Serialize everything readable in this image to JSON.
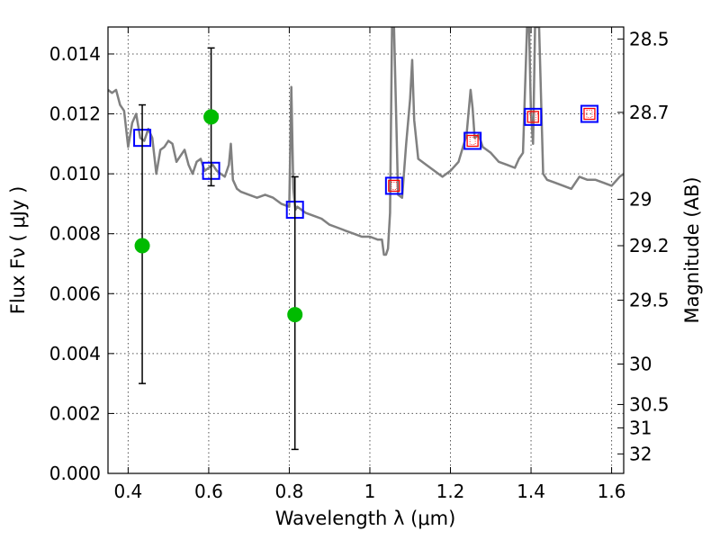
{
  "chart_data": {
    "type": "line",
    "xlabel": "Wavelength  λ (μm)",
    "ylabel": "Flux  Fν  ( μJy )",
    "ylabel_right": "Magnitude (AB)",
    "xlim": [
      0.35,
      1.63
    ],
    "ylim": [
      0.0,
      0.0149
    ],
    "grid": true,
    "x_ticks": [
      0.4,
      0.6,
      0.8,
      1.0,
      1.2,
      1.4,
      1.6
    ],
    "x_tick_labels": [
      "0.4",
      "0.6",
      "0.8",
      "1",
      "1.2",
      "1.4",
      "1.6"
    ],
    "y_ticks": [
      0.0,
      0.002,
      0.004,
      0.006,
      0.008,
      0.01,
      0.012,
      0.014
    ],
    "y_tick_labels": [
      "0.000",
      "0.002",
      "0.004",
      "0.006",
      "0.008",
      "0.010",
      "0.012",
      "0.014"
    ],
    "right_ticks": [
      {
        "label": "28.5",
        "flux": 0.0145
      },
      {
        "label": "28.7",
        "flux": 0.01205
      },
      {
        "label": "29",
        "flux": 0.00915
      },
      {
        "label": "29.2",
        "flux": 0.0076
      },
      {
        "label": "29.5",
        "flux": 0.00578
      },
      {
        "label": "30",
        "flux": 0.00365
      },
      {
        "label": "30.5",
        "flux": 0.0023
      },
      {
        "label": "31",
        "flux": 0.00152
      },
      {
        "label": "32",
        "flux": 0.00065
      }
    ],
    "series": [
      {
        "kind": "model_spectrum",
        "color": "#808080",
        "x": [
          0.35,
          0.36,
          0.37,
          0.38,
          0.39,
          0.4,
          0.41,
          0.42,
          0.43,
          0.44,
          0.45,
          0.46,
          0.47,
          0.48,
          0.49,
          0.5,
          0.51,
          0.52,
          0.53,
          0.54,
          0.55,
          0.56,
          0.57,
          0.58,
          0.59,
          0.6,
          0.61,
          0.62,
          0.63,
          0.64,
          0.65,
          0.655,
          0.66,
          0.67,
          0.68,
          0.7,
          0.72,
          0.74,
          0.76,
          0.78,
          0.8,
          0.805,
          0.81,
          0.815,
          0.82,
          0.84,
          0.86,
          0.88,
          0.9,
          0.92,
          0.94,
          0.96,
          0.98,
          1.0,
          1.02,
          1.03,
          1.035,
          1.04,
          1.045,
          1.05,
          1.055,
          1.06,
          1.07,
          1.08,
          1.09,
          1.1,
          1.105,
          1.11,
          1.12,
          1.14,
          1.16,
          1.18,
          1.2,
          1.22,
          1.24,
          1.25,
          1.255,
          1.26,
          1.27,
          1.28,
          1.3,
          1.32,
          1.34,
          1.36,
          1.37,
          1.38,
          1.39,
          1.395,
          1.4,
          1.405,
          1.41,
          1.42,
          1.43,
          1.44,
          1.46,
          1.48,
          1.5,
          1.52,
          1.54,
          1.56,
          1.58,
          1.6,
          1.62,
          1.63
        ],
        "y": [
          0.0128,
          0.0127,
          0.0128,
          0.0123,
          0.0121,
          0.0109,
          0.0117,
          0.012,
          0.0112,
          0.0111,
          0.0115,
          0.0112,
          0.01,
          0.0108,
          0.0109,
          0.0111,
          0.011,
          0.0104,
          0.0106,
          0.0108,
          0.0103,
          0.01,
          0.0104,
          0.0105,
          0.0101,
          0.0102,
          0.0103,
          0.0101,
          0.01,
          0.0099,
          0.0103,
          0.011,
          0.0098,
          0.0095,
          0.0094,
          0.0093,
          0.0092,
          0.0093,
          0.0092,
          0.009,
          0.0089,
          0.0129,
          0.0095,
          0.0088,
          0.0089,
          0.0087,
          0.0086,
          0.0085,
          0.0083,
          0.0082,
          0.0081,
          0.008,
          0.0079,
          0.0079,
          0.0078,
          0.0078,
          0.0073,
          0.0073,
          0.0075,
          0.0087,
          0.0149,
          0.0149,
          0.0093,
          0.0092,
          0.011,
          0.0125,
          0.0138,
          0.0118,
          0.0105,
          0.0103,
          0.0101,
          0.0099,
          0.0101,
          0.0104,
          0.0113,
          0.0128,
          0.0122,
          0.0112,
          0.0113,
          0.0109,
          0.0107,
          0.0104,
          0.0103,
          0.0102,
          0.0105,
          0.0107,
          0.0149,
          0.0149,
          0.012,
          0.011,
          0.0149,
          0.0149,
          0.01,
          0.0098,
          0.0097,
          0.0096,
          0.0095,
          0.0099,
          0.0098,
          0.0098,
          0.0097,
          0.0096,
          0.0099,
          0.01
        ]
      },
      {
        "kind": "model_photometry",
        "marker": "open-square",
        "color": "#0000ff",
        "x": [
          0.435,
          0.606,
          0.814,
          1.06,
          1.255,
          1.405,
          1.545
        ],
        "y": [
          0.0112,
          0.0101,
          0.0088,
          0.0096,
          0.0111,
          0.0119,
          0.012
        ]
      },
      {
        "kind": "observed_photometry",
        "marker": "open-square-small",
        "color": "#ff0000",
        "x": [
          1.06,
          1.255,
          1.405,
          1.545
        ],
        "y": [
          0.0096,
          0.0111,
          0.0119,
          0.012
        ]
      },
      {
        "kind": "observed_detections",
        "marker": "filled-circle",
        "color": "#00bb00",
        "x": [
          0.435,
          0.606,
          0.814
        ],
        "y": [
          0.0076,
          0.0119,
          0.0053
        ],
        "yerr_low": [
          0.003,
          0.0096,
          0.0008
        ],
        "yerr_high": [
          0.0123,
          0.0142,
          0.0099
        ]
      }
    ]
  }
}
